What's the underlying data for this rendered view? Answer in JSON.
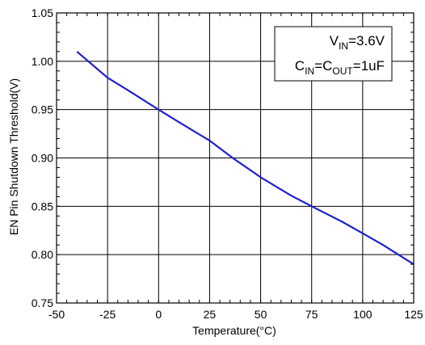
{
  "chart_data": {
    "type": "line",
    "xlabel": "Temperature(°C)",
    "ylabel": "EN Pin Shutdown Threshold(V)",
    "xlim": [
      -50,
      125
    ],
    "ylim": [
      0.75,
      1.05
    ],
    "x_ticks": [
      -50,
      -25,
      0,
      25,
      50,
      75,
      100,
      125
    ],
    "y_ticks": [
      0.75,
      0.8,
      0.85,
      0.9,
      0.95,
      1.0,
      1.05
    ],
    "x_tick_labels": [
      "-50",
      "-25",
      "0",
      "25",
      "50",
      "75",
      "100",
      "125"
    ],
    "y_tick_labels": [
      "0.75",
      "0.80",
      "0.85",
      "0.90",
      "0.95",
      "1.00",
      "1.05"
    ],
    "grid": true,
    "series": [
      {
        "color": "#1f1fd0",
        "x": [
          -40,
          -30,
          -25,
          -15,
          0,
          10,
          25,
          37,
          50,
          65,
          75,
          90,
          100,
          110,
          125
        ],
        "values": [
          1.01,
          0.992,
          0.983,
          0.97,
          0.95,
          0.937,
          0.918,
          0.899,
          0.88,
          0.861,
          0.85,
          0.834,
          0.822,
          0.81,
          0.79
        ]
      }
    ],
    "annotation": {
      "line1": {
        "main": "V",
        "sub": "IN",
        "rest": "=3.6V"
      },
      "line2": {
        "c1": "C",
        "sub1": "IN",
        "eq": "=C",
        "sub2": "OUT",
        "rest": "=1uF"
      },
      "placement": "top-right"
    }
  }
}
